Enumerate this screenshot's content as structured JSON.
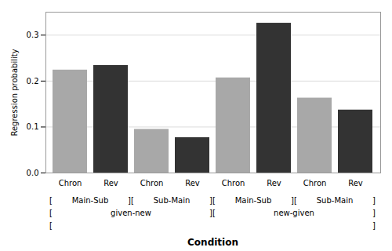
{
  "chart_data": {
    "type": "bar",
    "categories": [
      "Chron",
      "Rev",
      "Chron",
      "Rev",
      "Chron",
      "Rev",
      "Chron",
      "Rev"
    ],
    "values": [
      0.224,
      0.234,
      0.095,
      0.077,
      0.207,
      0.326,
      0.163,
      0.137
    ],
    "colors": [
      "#a8a8a8",
      "#333333",
      "#a8a8a8",
      "#333333",
      "#a8a8a8",
      "#333333",
      "#a8a8a8",
      "#333333"
    ],
    "ylabel": "Regression probability",
    "xlabel": "Condition",
    "ylim": [
      0,
      0.35
    ],
    "yticks": [
      {
        "value": 0,
        "label": "0.0"
      },
      0.1,
      0.2,
      0.3
    ],
    "grid": true,
    "annotations": [
      [
        "[",
        "Main-Sub",
        "][",
        "Sub-Main",
        "][",
        "Main-Sub",
        "][",
        "Sub-Main",
        "]"
      ],
      [
        "[",
        "given-new",
        "][",
        "new-given",
        "]"
      ],
      [
        "[",
        "]"
      ]
    ]
  }
}
